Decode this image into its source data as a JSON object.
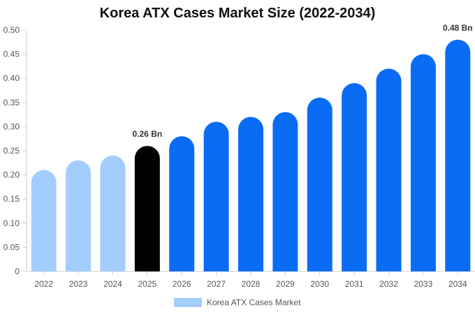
{
  "chart_data": {
    "type": "bar",
    "title": "Korea ATX Cases Market Size (2022-2034)",
    "xlabel": "",
    "ylabel": "",
    "categories": [
      "2022",
      "2023",
      "2024",
      "2025",
      "2026",
      "2027",
      "2028",
      "2029",
      "2030",
      "2031",
      "2032",
      "2033",
      "2034"
    ],
    "series": [
      {
        "name": "Korea ATX Cases Market",
        "values": [
          0.21,
          0.23,
          0.24,
          0.26,
          0.28,
          0.31,
          0.32,
          0.33,
          0.36,
          0.39,
          0.42,
          0.45,
          0.48
        ]
      }
    ],
    "ylim": [
      0,
      0.5
    ],
    "yticks": [
      "0",
      "0.05",
      "0.10",
      "0.15",
      "0.20",
      "0.25",
      "0.30",
      "0.35",
      "0.40",
      "0.45",
      "0.50"
    ],
    "annotations": [
      {
        "category": "2025",
        "text": "0.26 Bn"
      },
      {
        "category": "2034",
        "text": "0.48 Bn"
      }
    ],
    "colors": {
      "historical": "#a3cdfd",
      "current": "#000000",
      "forecast": "#0a6cf5"
    },
    "grid": false,
    "legend": "bottom-center"
  }
}
